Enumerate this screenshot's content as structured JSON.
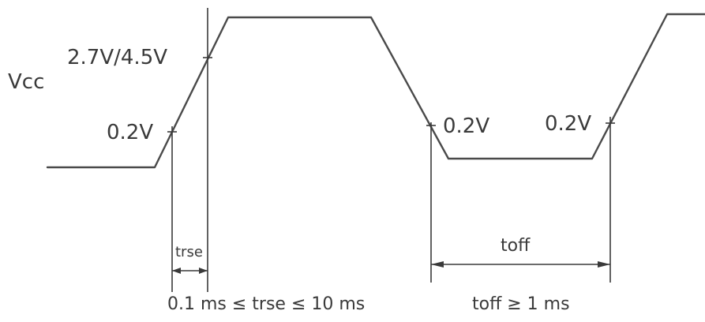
{
  "signal_label": "Vcc",
  "levels": {
    "high_threshold": "2.7V/4.5V",
    "low_threshold_rise": "0.2V",
    "low_threshold_fall": "0.2V",
    "low_threshold_rise2": "0.2V"
  },
  "intervals": {
    "rise_label": "trse",
    "off_label": "toff"
  },
  "constraints": {
    "rise": "0.1 ms ≤ trse ≤ 10 ms",
    "off": "toff ≥ 1 ms"
  },
  "colors": {
    "line": "#4a4a4a",
    "text": "#3a3a3a"
  }
}
